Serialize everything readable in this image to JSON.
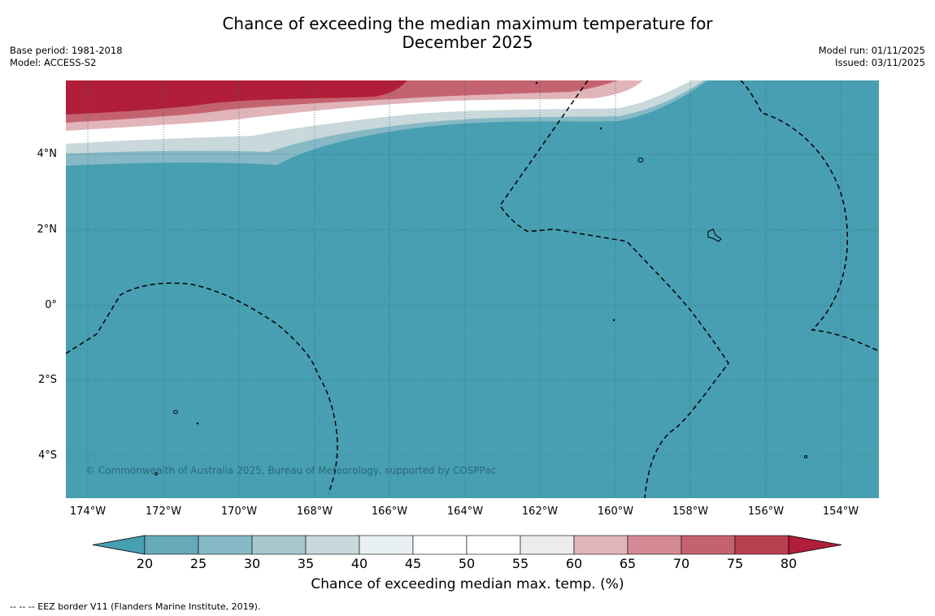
{
  "title_line1": "Chance of exceeding the median maximum temperature for",
  "title_line2": "December 2025",
  "meta_left": {
    "base_period": "Base period: 1981-2018",
    "model": "Model: ACCESS-S2"
  },
  "meta_right": {
    "model_run": "Model run: 01/11/2025",
    "issued": "Issued: 03/11/2025"
  },
  "lat_labels": [
    "4°N",
    "2°N",
    "0°",
    "2°S",
    "4°S"
  ],
  "lon_labels": [
    "174°W",
    "172°W",
    "170°W",
    "168°W",
    "166°W",
    "164°W",
    "162°W",
    "160°W",
    "158°W",
    "156°W",
    "154°W"
  ],
  "copyright": "© Commonwealth of Australia 2025, Bureau of Meteorology, supported by COSPPac",
  "colorbar": {
    "ticks": [
      "20",
      "25",
      "30",
      "35",
      "40",
      "45",
      "50",
      "55",
      "60",
      "65",
      "70",
      "75",
      "80"
    ],
    "colors": [
      "#66a9b8",
      "#86b9c5",
      "#a7c7cd",
      "#c9d8db",
      "#e8f0f1",
      "#ffffff",
      "#ffffff",
      "#ececec",
      "#e1b4ba",
      "#d48a94",
      "#c4636f",
      "#b9404f"
    ],
    "under_color": "#479fb1",
    "over_color": "#b01e3a",
    "label": "Chance of exceeding median max. temp. (%)"
  },
  "footnote": "--  --  -- EEZ border V11 (Flanders Marine Institute, 2019).",
  "colors": {
    "ocean": "#479fb1",
    "warm": "#b01e3a"
  }
}
